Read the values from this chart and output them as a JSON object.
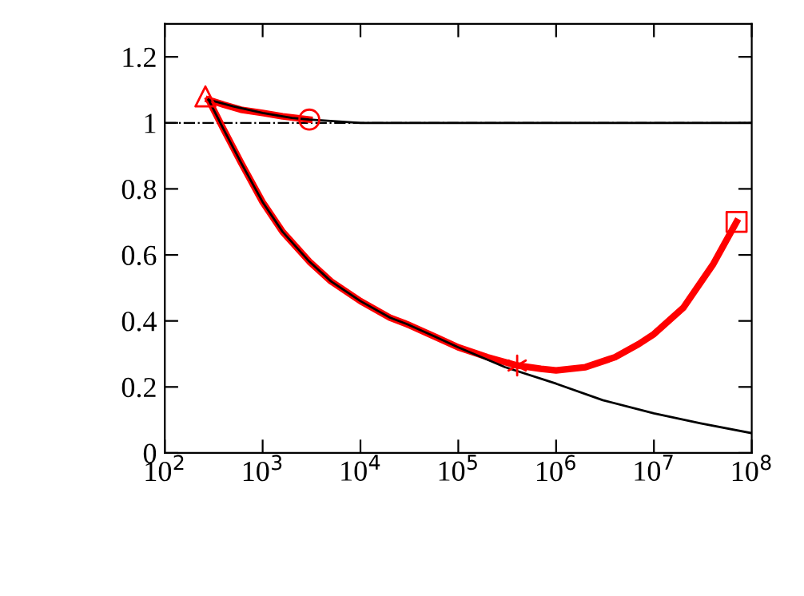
{
  "chart_data": {
    "type": "line",
    "log": "x",
    "xlim": [
      100,
      100000000
    ],
    "ylim": [
      0,
      1.3
    ],
    "xticks": [
      {
        "value": 100,
        "label": "10$^{2}$"
      },
      {
        "value": 1000,
        "label": "10$^{3}$"
      },
      {
        "value": 10000,
        "label": "10$^{4}$"
      },
      {
        "value": 100000,
        "label": "10$^{5}$"
      },
      {
        "value": 1000000,
        "label": "10$^{6}$"
      },
      {
        "value": 10000000,
        "label": "10$^{7}$"
      },
      {
        "value": 100000000,
        "label": "10$^{8}$"
      }
    ],
    "yticks": [
      0,
      0.2,
      0.4,
      0.6,
      0.8,
      1,
      1.2
    ],
    "grid": false,
    "legend": false,
    "ref_lines": [
      {
        "axis": "y",
        "value": 1,
        "color": "#000000",
        "line_style": "dashdot"
      }
    ],
    "series": [
      {
        "color": "#000000",
        "x": [
          280,
          500,
          1000,
          2000,
          3000,
          10000,
          100000,
          1000000,
          10000000,
          100000000
        ],
        "values": [
          1.07,
          1.05,
          1.03,
          1.015,
          1.01,
          1.0,
          1.0,
          1.0,
          1.0,
          1.0
        ]
      },
      {
        "color": "#000000",
        "x": [
          280,
          400,
          600,
          1000,
          1600,
          3000,
          5000,
          10000,
          20000,
          30000,
          60000,
          100000,
          300000,
          1000000,
          3000000,
          10000000,
          30000000,
          100000000
        ],
        "values": [
          1.07,
          0.98,
          0.88,
          0.76,
          0.67,
          0.58,
          0.52,
          0.46,
          0.41,
          0.39,
          0.35,
          0.32,
          0.26,
          0.21,
          0.16,
          0.12,
          0.09,
          0.06
        ]
      },
      {
        "color": "#ff0000",
        "x": [
          280,
          400,
          600,
          1000,
          1600,
          2200,
          3000
        ],
        "values": [
          1.07,
          1.055,
          1.04,
          1.03,
          1.02,
          1.015,
          1.01
        ]
      },
      {
        "color": "#ff0000",
        "x": [
          280,
          400,
          600,
          1000,
          1600,
          3000,
          5000,
          10000,
          20000,
          30000,
          60000,
          100000,
          200000,
          400000,
          700000,
          1000000,
          2000000,
          4000000,
          7000000,
          10000000,
          20000000,
          40000000,
          70000000
        ],
        "values": [
          1.07,
          0.98,
          0.88,
          0.76,
          0.67,
          0.58,
          0.52,
          0.46,
          0.41,
          0.39,
          0.35,
          0.32,
          0.29,
          0.265,
          0.255,
          0.25,
          0.26,
          0.29,
          0.33,
          0.36,
          0.44,
          0.57,
          0.7
        ]
      },
      {
        "type": "scatter",
        "color": "#ff0000",
        "marker": "triangle",
        "x": [
          260
        ],
        "values": [
          1.08
        ]
      },
      {
        "type": "scatter",
        "color": "#ff0000",
        "marker": "circle",
        "x": [
          3000
        ],
        "values": [
          1.01
        ]
      },
      {
        "type": "scatter",
        "color": "#ff0000",
        "marker": "cross",
        "x": [
          400000
        ],
        "values": [
          0.265
        ]
      },
      {
        "type": "scatter",
        "color": "#ff0000",
        "marker": "square",
        "x": [
          70000000
        ],
        "values": [
          0.7
        ]
      }
    ]
  }
}
